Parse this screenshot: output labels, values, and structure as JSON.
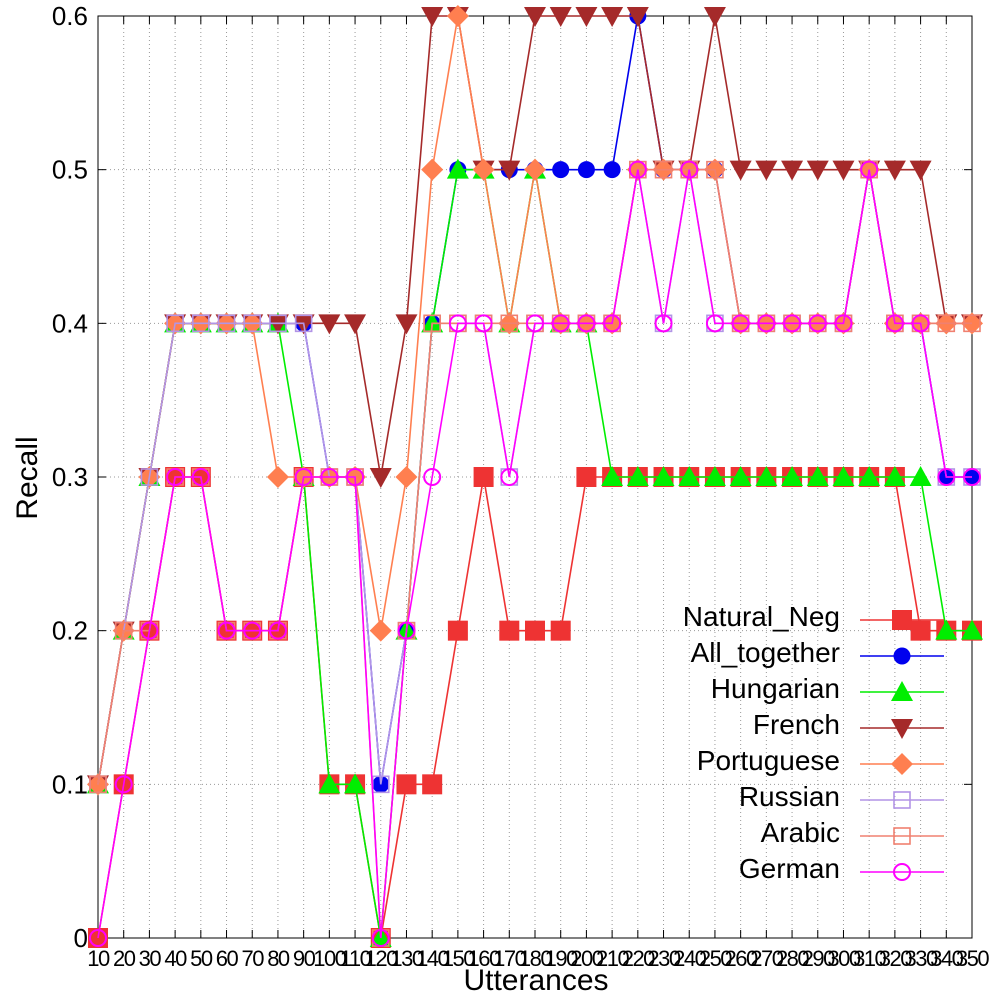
{
  "chart_data": {
    "type": "line",
    "title": "",
    "xlabel": "Utterances",
    "ylabel": "Recall",
    "ylim": [
      0,
      0.6
    ],
    "yticks": [
      "0",
      "0.1",
      "0.2",
      "0.3",
      "0.4",
      "0.5",
      "0.6"
    ],
    "categories": [
      "10",
      "20",
      "30",
      "40",
      "50",
      "60",
      "70",
      "80",
      "90",
      "100",
      "110",
      "120",
      "130",
      "140",
      "150",
      "160",
      "170",
      "180",
      "190",
      "200",
      "210",
      "220",
      "230",
      "240",
      "250",
      "260",
      "270",
      "280",
      "290",
      "300",
      "310",
      "320",
      "330",
      "340",
      "350"
    ],
    "grid": true,
    "legend_position": "bottom-right",
    "series": [
      {
        "name": "Natural_Neg",
        "color": "#ee3333",
        "marker": "square-filled",
        "values": [
          0,
          0.1,
          0.2,
          0.3,
          0.3,
          0.2,
          0.2,
          0.2,
          0.3,
          0.1,
          0.1,
          0,
          0.1,
          0.1,
          0.2,
          0.3,
          0.2,
          0.2,
          0.2,
          0.3,
          0.3,
          0.3,
          0.3,
          0.3,
          0.3,
          0.3,
          0.3,
          0.3,
          0.3,
          0.3,
          0.3,
          0.3,
          0.2,
          0.2,
          0.2
        ]
      },
      {
        "name": "All_together",
        "color": "#0000ee",
        "marker": "circle-filled",
        "values": [
          0.1,
          0.2,
          0.3,
          0.4,
          0.4,
          0.4,
          0.4,
          0.4,
          0.4,
          0.3,
          0.3,
          0.1,
          0.2,
          0.4,
          0.5,
          0.5,
          0.5,
          0.5,
          0.5,
          0.5,
          0.5,
          0.6,
          0.5,
          0.5,
          0.5,
          0.4,
          0.4,
          0.4,
          0.4,
          0.4,
          0.5,
          0.4,
          0.4,
          0.3,
          0.3
        ]
      },
      {
        "name": "Hungarian",
        "color": "#00ee00",
        "marker": "triangle-up-filled",
        "values": [
          0.1,
          0.2,
          0.3,
          0.4,
          0.4,
          0.4,
          0.4,
          0.4,
          0.3,
          0.1,
          0.1,
          0,
          0.2,
          0.4,
          0.5,
          0.5,
          0.4,
          0.5,
          0.4,
          0.4,
          0.3,
          0.3,
          0.3,
          0.3,
          0.3,
          0.3,
          0.3,
          0.3,
          0.3,
          0.3,
          0.3,
          0.3,
          0.3,
          0.2,
          0.2
        ]
      },
      {
        "name": "French",
        "color": "#a52a2a",
        "marker": "triangle-down-filled",
        "values": [
          0.1,
          0.2,
          0.3,
          0.4,
          0.4,
          0.4,
          0.4,
          0.4,
          0.4,
          0.4,
          0.4,
          0.3,
          0.4,
          0.6,
          0.6,
          0.5,
          0.5,
          0.6,
          0.6,
          0.6,
          0.6,
          0.6,
          0.5,
          0.5,
          0.6,
          0.5,
          0.5,
          0.5,
          0.5,
          0.5,
          0.5,
          0.5,
          0.5,
          0.4,
          0.4
        ]
      },
      {
        "name": "Portuguese",
        "color": "#ff7f50",
        "marker": "diamond-filled",
        "values": [
          0.1,
          0.2,
          0.3,
          0.4,
          0.4,
          0.4,
          0.4,
          0.3,
          0.3,
          0.3,
          0.3,
          0.2,
          0.3,
          0.5,
          0.6,
          0.5,
          0.4,
          0.5,
          0.4,
          0.4,
          0.4,
          0.5,
          0.5,
          0.5,
          0.5,
          0.4,
          0.4,
          0.4,
          0.4,
          0.4,
          0.5,
          0.4,
          0.4,
          0.4,
          0.4
        ]
      },
      {
        "name": "Russian",
        "color": "#b294e6",
        "marker": "square-open",
        "values": [
          0.1,
          0.2,
          0.3,
          0.4,
          0.4,
          0.4,
          0.4,
          0.4,
          0.4,
          0.3,
          0.3,
          0.1,
          0.2,
          0.4,
          0.4,
          0.4,
          0.3,
          0.4,
          0.4,
          0.4,
          0.4,
          0.5,
          0.4,
          0.5,
          0.4,
          0.4,
          0.4,
          0.4,
          0.4,
          0.4,
          0.5,
          0.4,
          0.4,
          0.3,
          0.3
        ]
      },
      {
        "name": "Arabic",
        "color": "#f08070",
        "marker": "square-open",
        "values": [
          0.1,
          0.2,
          0.2,
          0.3,
          0.3,
          0.2,
          0.2,
          0.2,
          0.3,
          0.3,
          0.3,
          0,
          0.2,
          0.4,
          0.4,
          0.4,
          0.4,
          0.4,
          0.4,
          0.4,
          0.4,
          0.5,
          0.5,
          0.5,
          0.5,
          0.4,
          0.4,
          0.4,
          0.4,
          0.4,
          0.5,
          0.4,
          0.4,
          0.4,
          0.4
        ]
      },
      {
        "name": "German",
        "color": "#ff00ff",
        "marker": "circle-open",
        "values": [
          0,
          0.1,
          0.2,
          0.3,
          0.3,
          0.2,
          0.2,
          0.2,
          0.3,
          0.3,
          0.3,
          0,
          0.2,
          0.3,
          0.4,
          0.4,
          0.3,
          0.4,
          0.4,
          0.4,
          0.4,
          0.5,
          0.4,
          0.5,
          0.4,
          0.4,
          0.4,
          0.4,
          0.4,
          0.4,
          0.5,
          0.4,
          0.4,
          0.3,
          0.3
        ]
      }
    ]
  }
}
